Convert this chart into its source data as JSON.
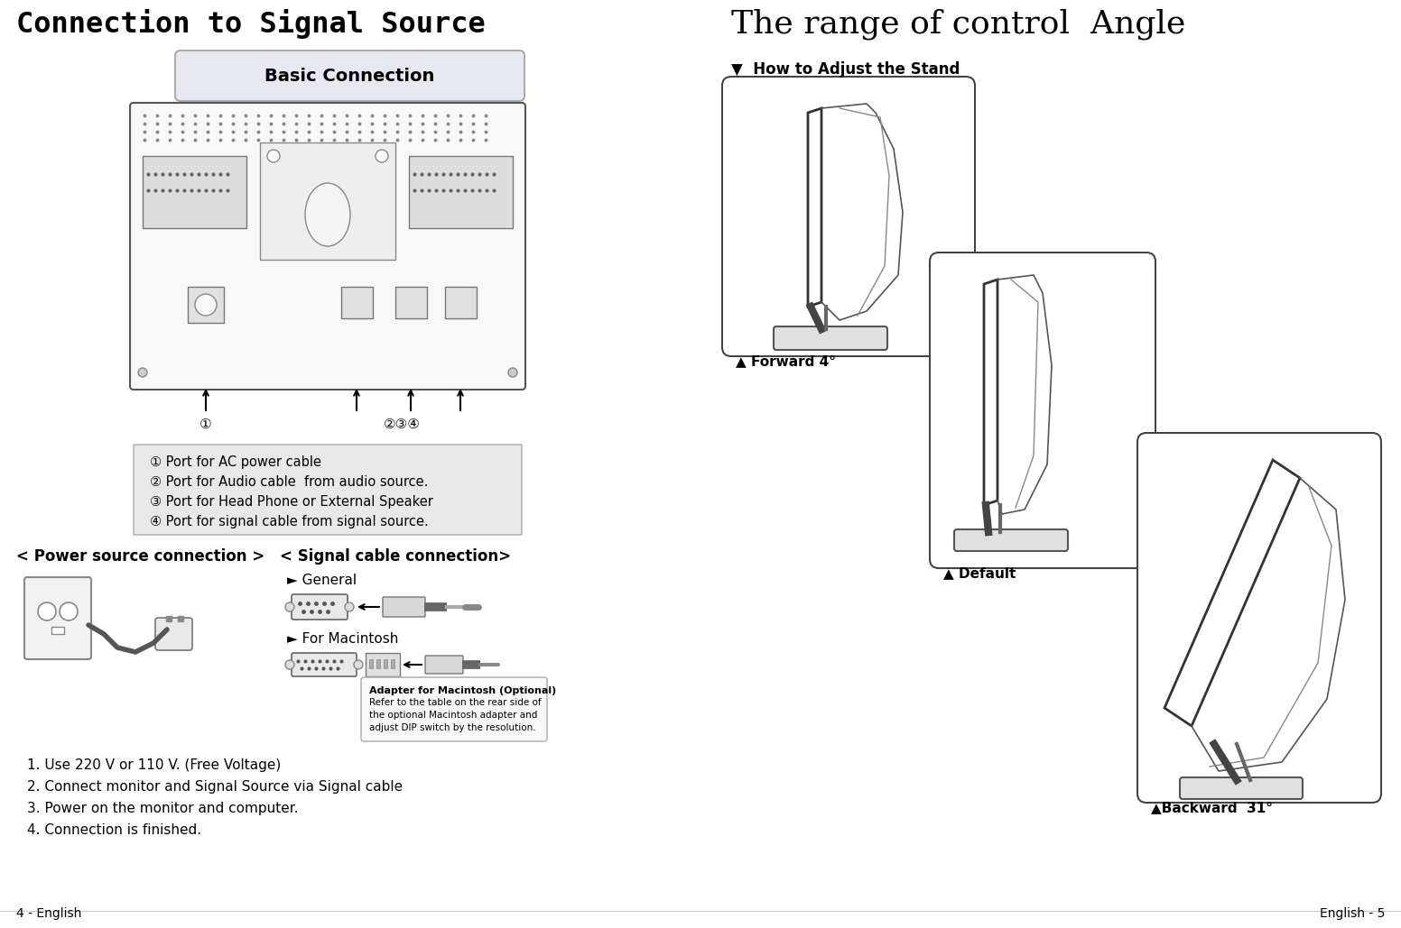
{
  "title_left": "Connection to Signal Source",
  "title_right": "The range of control  Angle",
  "basic_connection_label": "Basic Connection",
  "how_to_adjust": "▼  How to Adjust the Stand",
  "forward_label": "▲ Forward 4°",
  "default_label": "▲ Default",
  "backward_label": "▲Backward  31°",
  "port_labels": [
    "① Port for AC power cable",
    "② Port for Audio cable  from audio source.",
    "③ Port for Head Phone or External Speaker",
    "④ Port for signal cable from signal source."
  ],
  "power_conn_label": "< Power source connection >",
  "signal_conn_label": "< Signal cable connection>",
  "general_label": "► General",
  "macintosh_label": "► For Macintosh",
  "adapter_note_title": "Adapter for Macintosh (Optional)",
  "adapter_note_lines": [
    "Refer to the table on the rear side of",
    "the optional Macintosh adapter and",
    "adjust DIP switch by the resolution."
  ],
  "steps": [
    "1. Use 220 V or 110 V. (Free Voltage)",
    "2. Connect monitor and Signal Source via Signal cable",
    "3. Power on the monitor and computer.",
    "4. Connection is finished."
  ],
  "footer_left": "4 - English",
  "footer_right": "English - 5",
  "bg_color": "#ffffff",
  "text_color": "#000000"
}
